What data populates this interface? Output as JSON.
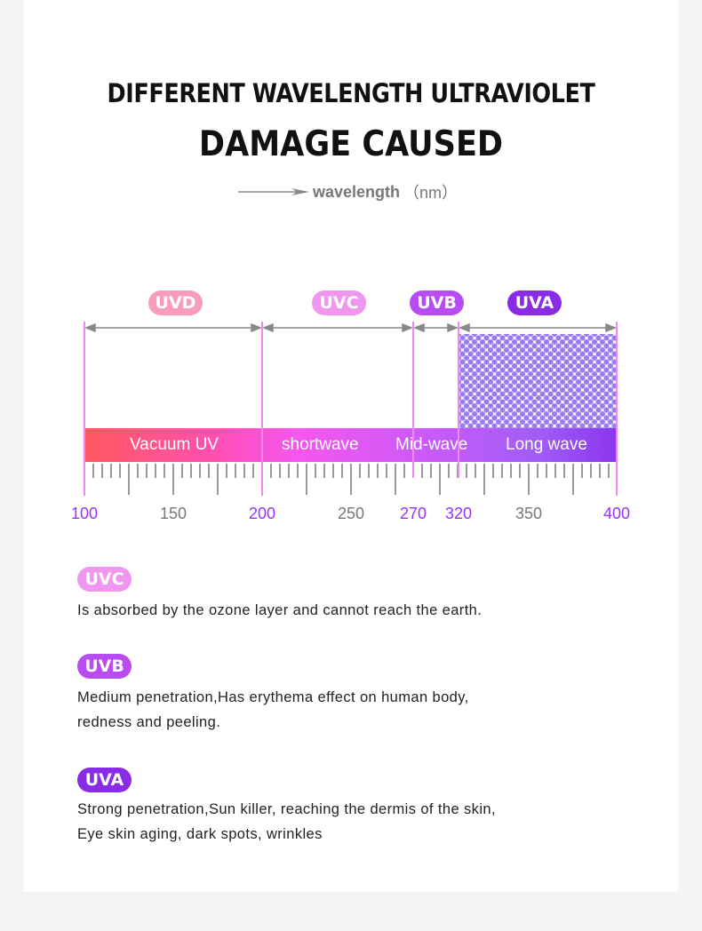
{
  "title_line1": "DIFFERENT WAVELENGTH ULTRAVIOLET",
  "title_line2": "DAMAGE CAUSED",
  "axis_label": {
    "word": "wavelength",
    "unit": "（nm）"
  },
  "colors": {
    "uvd": "#f89cbc",
    "uvc": "#ef97ef",
    "uvb": "#b64cf2",
    "uva": "#8a2be6",
    "highlight": "#9b30ff",
    "gray": "#777777"
  },
  "bands": [
    {
      "name": "UVD",
      "range": [
        100,
        200
      ],
      "segment": "Vacuum UV"
    },
    {
      "name": "UVC",
      "range": [
        200,
        270
      ],
      "segment": "shortwave"
    },
    {
      "name": "UVB",
      "range": [
        270,
        320
      ],
      "segment": "Mid-wave"
    },
    {
      "name": "UVA",
      "range": [
        320,
        400
      ],
      "segment": "Long wave"
    }
  ],
  "ticks": [
    {
      "label": "100",
      "highlight": true
    },
    {
      "label": "150",
      "highlight": false
    },
    {
      "label": "200",
      "highlight": true
    },
    {
      "label": "250",
      "highlight": false
    },
    {
      "label": "270",
      "highlight": true
    },
    {
      "label": "320",
      "highlight": true
    },
    {
      "label": "350",
      "highlight": false
    },
    {
      "label": "400",
      "highlight": true
    }
  ],
  "descriptions": [
    {
      "badge": "UVC",
      "lines": [
        "Is absorbed by the ozone layer and cannot reach the earth."
      ]
    },
    {
      "badge": "UVB",
      "lines": [
        "Medium penetration,Has erythema effect on human body,",
        "redness and peeling."
      ]
    },
    {
      "badge": "UVA",
      "lines": [
        "Strong penetration,Sun killer, reaching the dermis of the skin,",
        "Eye skin aging, dark spots, wrinkles"
      ]
    }
  ]
}
